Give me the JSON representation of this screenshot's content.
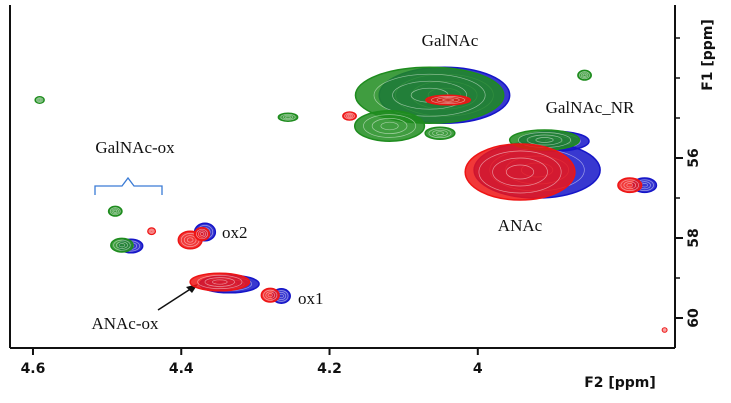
{
  "chart_data": {
    "type": "contour",
    "x_label": "F2 [ppm]",
    "y_label": "F1 [ppm]",
    "xlim": [
      4.631,
      3.734
    ],
    "ylim": [
      52.175,
      60.75
    ],
    "xticks": [
      4.6,
      4.4,
      4.2,
      4.0
    ],
    "yticks": [
      56,
      58,
      60
    ],
    "minor_yticks": [
      53,
      54,
      55,
      57,
      59
    ],
    "peaks": [
      {
        "x": 4.045,
        "y": 54.43,
        "wx": 0.088,
        "wy": 0.7,
        "color": "#1515c8"
      },
      {
        "x": 3.897,
        "y": 55.58,
        "wx": 0.047,
        "wy": 0.25,
        "color": "#1515c8"
      },
      {
        "x": 3.92,
        "y": 56.3,
        "wx": 0.085,
        "wy": 0.7,
        "color": "#1515c8"
      },
      {
        "x": 3.775,
        "y": 56.68,
        "wx": 0.016,
        "wy": 0.18,
        "color": "#1515c8"
      },
      {
        "x": 4.368,
        "y": 57.85,
        "wx": 0.014,
        "wy": 0.22,
        "color": "#1515c8"
      },
      {
        "x": 4.335,
        "y": 59.15,
        "wx": 0.04,
        "wy": 0.22,
        "color": "#1515c8"
      },
      {
        "x": 4.265,
        "y": 59.45,
        "wx": 0.012,
        "wy": 0.18,
        "color": "#1515c8"
      },
      {
        "x": 4.468,
        "y": 58.2,
        "wx": 0.016,
        "wy": 0.17,
        "color": "#1515c8"
      },
      {
        "x": 4.591,
        "y": 54.55,
        "wx": 0.006,
        "wy": 0.08,
        "color": "#1e8c1e"
      },
      {
        "x": 4.256,
        "y": 54.98,
        "wx": 0.013,
        "wy": 0.1,
        "color": "#1e8c1e"
      },
      {
        "x": 3.856,
        "y": 53.93,
        "wx": 0.009,
        "wy": 0.12,
        "color": "#1e8c1e"
      },
      {
        "x": 4.489,
        "y": 57.33,
        "wx": 0.009,
        "wy": 0.12,
        "color": "#1e8c1e"
      },
      {
        "x": 4.48,
        "y": 58.18,
        "wx": 0.015,
        "wy": 0.17,
        "color": "#1e8c1e"
      },
      {
        "x": 4.065,
        "y": 54.43,
        "wx": 0.1,
        "wy": 0.7,
        "color": "#1e8c1e"
      },
      {
        "x": 4.119,
        "y": 55.2,
        "wx": 0.047,
        "wy": 0.38,
        "color": "#1e8c1e"
      },
      {
        "x": 4.051,
        "y": 55.38,
        "wx": 0.02,
        "wy": 0.15,
        "color": "#1e8c1e"
      },
      {
        "x": 3.91,
        "y": 55.55,
        "wx": 0.047,
        "wy": 0.25,
        "color": "#1e8c1e"
      },
      {
        "x": 4.173,
        "y": 54.95,
        "wx": 0.009,
        "wy": 0.1,
        "color": "#ee1515"
      },
      {
        "x": 4.04,
        "y": 54.55,
        "wx": 0.03,
        "wy": 0.12,
        "color": "#ee1515"
      },
      {
        "x": 3.943,
        "y": 56.35,
        "wx": 0.074,
        "wy": 0.7,
        "color": "#ee1515"
      },
      {
        "x": 3.795,
        "y": 56.68,
        "wx": 0.016,
        "wy": 0.18,
        "color": "#ee1515"
      },
      {
        "x": 4.44,
        "y": 57.83,
        "wx": 0.005,
        "wy": 0.08,
        "color": "#ee1515"
      },
      {
        "x": 4.388,
        "y": 58.05,
        "wx": 0.016,
        "wy": 0.22,
        "color": "#ee1515"
      },
      {
        "x": 4.372,
        "y": 57.9,
        "wx": 0.01,
        "wy": 0.16,
        "color": "#ee1515"
      },
      {
        "x": 4.348,
        "y": 59.1,
        "wx": 0.04,
        "wy": 0.22,
        "color": "#ee1515"
      },
      {
        "x": 4.28,
        "y": 59.43,
        "wx": 0.012,
        "wy": 0.17,
        "color": "#ee1515"
      },
      {
        "x": 3.748,
        "y": 60.3,
        "wx": 0.003,
        "wy": 0.05,
        "color": "#ee1515"
      }
    ],
    "annotations": [
      "GalNAc",
      "GalNAc_NR",
      "GalNAc-ox",
      "ANAc",
      "ox2",
      "ox1",
      "ANAc-ox"
    ]
  }
}
